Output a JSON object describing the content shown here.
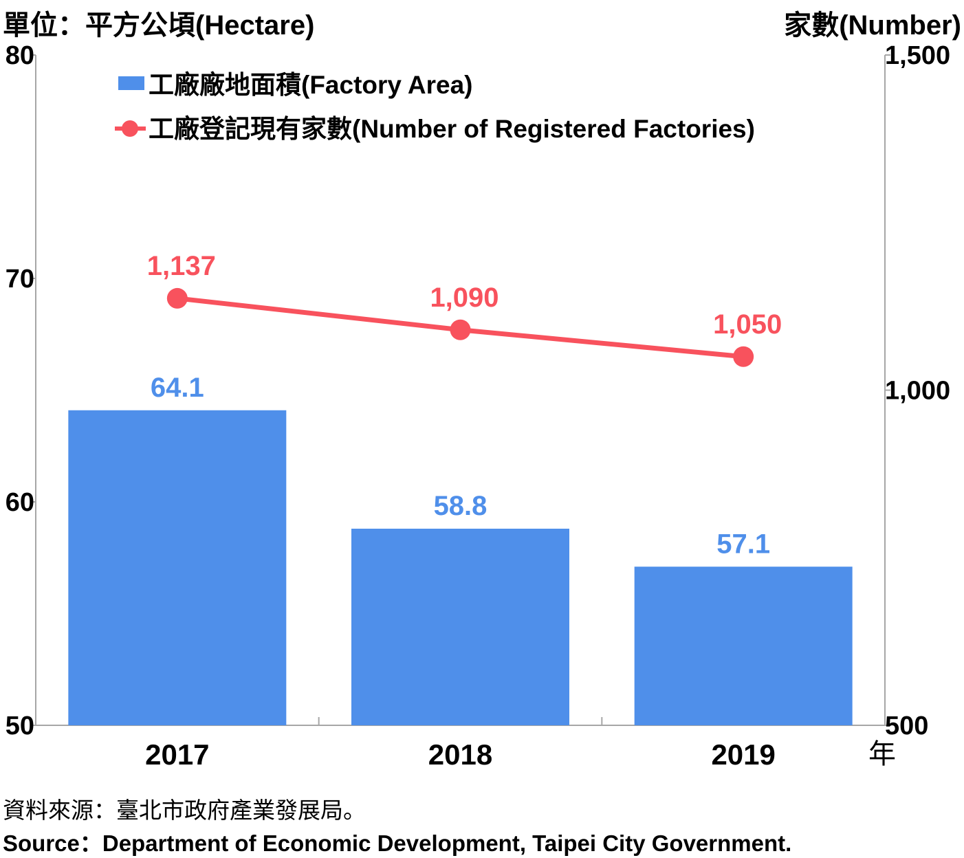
{
  "units": {
    "left": "單位：平方公頃(Hectare)",
    "right": "家數(Number)",
    "x": "年"
  },
  "source": {
    "zh": "資料來源：臺北市政府產業發展局。",
    "en": "Source：Department of Economic Development, Taipei City Government."
  },
  "colors": {
    "bar": "#4f8fea",
    "line": "#f8525d",
    "bar_label": "#4f8fea",
    "line_label": "#f8525d",
    "axis": "#a6a6a6"
  },
  "chart_data": {
    "type": "bar",
    "categories": [
      "2017",
      "2018",
      "2019"
    ],
    "series": [
      {
        "name": "工廠廠地面積(Factory Area)",
        "type": "bar",
        "axis": "left",
        "values": [
          64.1,
          58.8,
          57.1
        ],
        "labels": [
          "64.1",
          "58.8",
          "57.1"
        ]
      },
      {
        "name": "工廠登記現有家數(Number of Registered Factories)",
        "type": "line",
        "axis": "right",
        "values": [
          1137,
          1090,
          1050
        ],
        "labels": [
          "1,137",
          "1,090",
          "1,050"
        ]
      }
    ],
    "y_left": {
      "min": 50,
      "max": 80,
      "ticks": [
        50,
        60,
        70,
        80
      ],
      "tick_labels": [
        "50",
        "60",
        "70",
        "80"
      ]
    },
    "y_right": {
      "min": 500,
      "max": 1500,
      "ticks": [
        500,
        1000,
        1500
      ],
      "tick_labels": [
        "500",
        "1,000",
        "1,500"
      ]
    },
    "grid": false,
    "legend": "top-left"
  }
}
